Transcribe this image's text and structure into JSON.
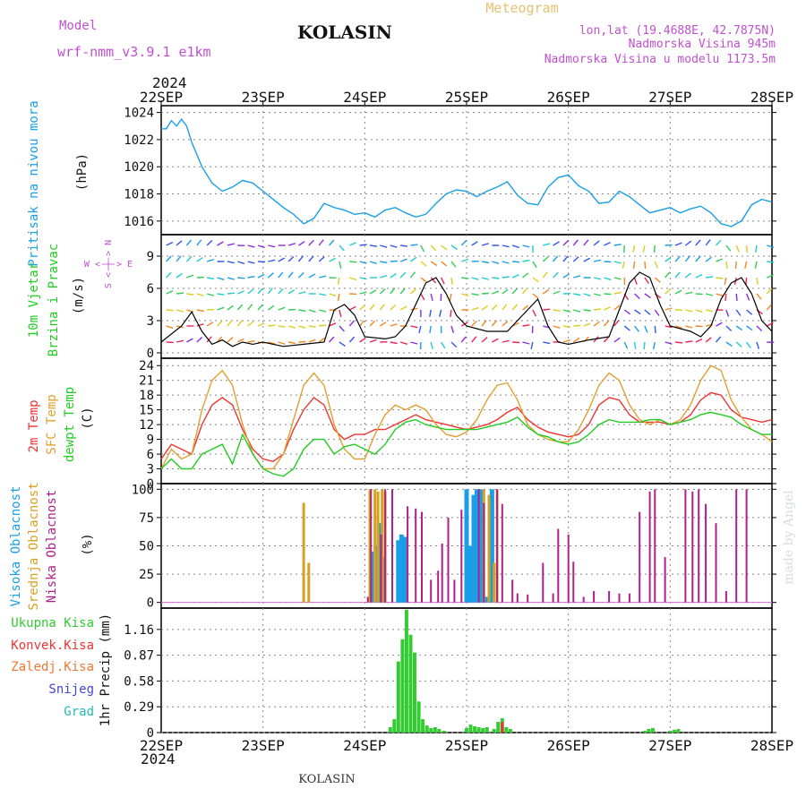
{
  "header": {
    "model_label": "Model",
    "model_name": "wrf-nmm_v3.9.1 e1km",
    "station": "KOLASIN",
    "product": "Meteogram",
    "lonlat": "lon,lat (19.4688E, 42.7875N)",
    "elevation": "Nadmorska Visina 945m",
    "model_elevation": "Nadmorska Visina u modelu 1173.5m",
    "credit": "made by Angel",
    "footer": "KOLASIN"
  },
  "time_axis": {
    "year": "2024",
    "labels": [
      "22SEP",
      "23SEP",
      "24SEP",
      "25SEP",
      "26SEP",
      "27SEP",
      "28SEP"
    ]
  },
  "panels": {
    "pressure": {
      "title": "Pritisak na nivou mora",
      "unit": "(hPa)"
    },
    "wind": {
      "title1": "10m Vjetar",
      "title2": "Brzina i Pravac",
      "unit": "(m/s)",
      "compass_we": "W <-|-> E",
      "compass_sn": "S <-|-> N"
    },
    "temp": {
      "t1": "2m Temp",
      "t2": "SFC Temp",
      "t3": "dewpt Temp",
      "unit": "(C)"
    },
    "cloud": {
      "t1": "Visoka Oblacnost",
      "t2": "Srednja Oblacnost",
      "t3": "Niska Oblacnost",
      "unit": "(%)"
    },
    "precip": {
      "l1": "Ukupna Kisa",
      "l2": "Konvek.Kisa",
      "l3": "Zaledj.Kisa",
      "l4": "Snijeg",
      "l5": "Grad",
      "unit": "1hr Precip (mm)"
    }
  },
  "colors": {
    "pressure": "#1a9fe6",
    "t2m": "#ee3333",
    "tsfc": "#e0a030",
    "dew": "#22cc22",
    "high": "#1a9fe6",
    "mid": "#d8a020",
    "low": "#b0208a",
    "total": "#33cc33",
    "conv": "#ee3333",
    "freeze": "#ee7733",
    "snow": "#4444dd",
    "grad": "#22bbbb",
    "title": "#c050d0"
  },
  "chart_data": [
    {
      "type": "line",
      "name": "pressure",
      "x_days": [
        0,
        0.05,
        0.1,
        0.15,
        0.2,
        0.25,
        0.3,
        0.4,
        0.5,
        0.6,
        0.7,
        0.8,
        0.9,
        1.0,
        1.1,
        1.2,
        1.3,
        1.4,
        1.5,
        1.6,
        1.7,
        1.8,
        1.9,
        2.0,
        2.1,
        2.2,
        2.3,
        2.4,
        2.5,
        2.6,
        2.7,
        2.8,
        2.9,
        3.0,
        3.1,
        3.2,
        3.3,
        3.4,
        3.5,
        3.6,
        3.7,
        3.8,
        3.9,
        4.0,
        4.1,
        4.2,
        4.3,
        4.4,
        4.5,
        4.6,
        4.7,
        4.8,
        4.9,
        5.0,
        5.1,
        5.2,
        5.3,
        5.4,
        5.5,
        5.6,
        5.7,
        5.8,
        5.9,
        6.0
      ],
      "y": [
        1022.8,
        1022.8,
        1023.4,
        1023.0,
        1023.5,
        1023.0,
        1021.8,
        1020.0,
        1018.8,
        1018.2,
        1018.5,
        1019.0,
        1018.8,
        1018.2,
        1017.6,
        1017.0,
        1016.5,
        1015.8,
        1016.2,
        1017.3,
        1017.0,
        1016.8,
        1016.5,
        1016.6,
        1016.3,
        1016.8,
        1017.0,
        1016.6,
        1016.3,
        1016.5,
        1017.3,
        1018.0,
        1018.3,
        1018.2,
        1017.8,
        1018.2,
        1018.5,
        1018.9,
        1017.9,
        1017.3,
        1017.2,
        1018.5,
        1019.2,
        1019.4,
        1018.6,
        1018.2,
        1017.3,
        1017.4,
        1018.2,
        1017.8,
        1017.2,
        1016.6,
        1016.8,
        1017.0,
        1016.6,
        1016.9,
        1017.1,
        1016.6,
        1015.8,
        1015.6,
        1016.0,
        1017.2,
        1017.6,
        1017.4
      ],
      "ylim": [
        1015,
        1024.5
      ],
      "yticks": [
        1016,
        1018,
        1020,
        1022,
        1024
      ]
    },
    {
      "type": "line",
      "name": "wind_speed",
      "x_days": [
        0,
        0.2,
        0.3,
        0.4,
        0.5,
        0.6,
        0.7,
        0.8,
        0.9,
        1.0,
        1.2,
        1.4,
        1.6,
        1.7,
        1.8,
        1.9,
        2.0,
        2.2,
        2.3,
        2.4,
        2.5,
        2.6,
        2.7,
        2.8,
        2.9,
        3.0,
        3.2,
        3.4,
        3.5,
        3.6,
        3.7,
        3.8,
        3.9,
        4.0,
        4.2,
        4.4,
        4.5,
        4.6,
        4.7,
        4.8,
        4.9,
        5.0,
        5.2,
        5.3,
        5.4,
        5.5,
        5.6,
        5.7,
        5.8,
        5.9,
        6.0
      ],
      "y": [
        1.0,
        2.5,
        3.8,
        2.0,
        0.8,
        1.2,
        0.6,
        1.0,
        0.8,
        1.0,
        0.6,
        0.8,
        1.0,
        4.0,
        4.5,
        3.5,
        1.5,
        1.3,
        1.5,
        2.5,
        4.5,
        6.5,
        7.0,
        5.5,
        3.5,
        2.5,
        2.0,
        2.0,
        3.0,
        4.0,
        5.0,
        2.5,
        1.0,
        0.8,
        1.2,
        1.5,
        4.0,
        6.5,
        7.5,
        7.0,
        4.5,
        2.5,
        2.0,
        1.5,
        2.5,
        5.0,
        6.5,
        7.0,
        5.5,
        3.0,
        2.0
      ],
      "ylim": [
        -0.5,
        11
      ],
      "yticks": [
        0,
        3,
        6,
        9
      ]
    },
    {
      "type": "line",
      "name": "temperature",
      "x_days": [
        0,
        0.1,
        0.2,
        0.3,
        0.4,
        0.5,
        0.6,
        0.7,
        0.8,
        0.9,
        1.0,
        1.1,
        1.2,
        1.3,
        1.4,
        1.5,
        1.6,
        1.7,
        1.8,
        1.9,
        2.0,
        2.1,
        2.2,
        2.3,
        2.4,
        2.5,
        2.6,
        2.7,
        2.8,
        2.9,
        3.0,
        3.1,
        3.2,
        3.3,
        3.4,
        3.5,
        3.6,
        3.7,
        3.8,
        3.9,
        4.0,
        4.1,
        4.2,
        4.3,
        4.4,
        4.5,
        4.6,
        4.7,
        4.8,
        4.9,
        5.0,
        5.1,
        5.2,
        5.3,
        5.4,
        5.5,
        5.6,
        5.7,
        5.8,
        5.9,
        6.0
      ],
      "series": [
        {
          "name": "2m Temp",
          "y": [
            5,
            8,
            7,
            6,
            12,
            16,
            17.5,
            16,
            11,
            7,
            5,
            4.5,
            6,
            11,
            15,
            17.5,
            16,
            11,
            9,
            10,
            10,
            11,
            11,
            12,
            13,
            14,
            13,
            12.5,
            12,
            11.5,
            11,
            11.5,
            12,
            13,
            14.5,
            15.5,
            13,
            11.5,
            10.5,
            10,
            9.5,
            10,
            12,
            16,
            17.5,
            17,
            14,
            12.5,
            12.5,
            12.5,
            12,
            12.5,
            14,
            17,
            18.5,
            18,
            15,
            13.5,
            13,
            12.5,
            13
          ]
        },
        {
          "name": "SFC Temp",
          "y": [
            3,
            7,
            5,
            6,
            15,
            21,
            23,
            20,
            12,
            6,
            3,
            3,
            6,
            13,
            20,
            22.5,
            20,
            12,
            7,
            5,
            5,
            10,
            14,
            16,
            15,
            16,
            15,
            12,
            10,
            9.5,
            10.5,
            13,
            17,
            20,
            20.5,
            17,
            12,
            10,
            9,
            8.5,
            8.5,
            11,
            15,
            20,
            22.5,
            21,
            16,
            13,
            12,
            13,
            12,
            13,
            16,
            21,
            24,
            23,
            17,
            13.5,
            11,
            10,
            8.5
          ]
        },
        {
          "name": "dewpt Temp",
          "y": [
            3,
            5,
            3,
            3,
            6,
            7,
            8,
            4,
            10,
            6,
            3,
            2,
            1.5,
            3,
            7,
            9,
            9,
            6,
            7.5,
            8,
            7,
            6,
            8,
            11,
            12.5,
            13,
            12,
            11.5,
            11,
            11,
            11,
            11,
            11.5,
            12,
            12.5,
            13.5,
            11.5,
            10,
            9.5,
            8.5,
            8,
            8.5,
            10,
            12,
            13,
            12.5,
            12.5,
            12.5,
            13,
            13,
            12,
            12.5,
            13,
            14,
            14.5,
            14,
            13.5,
            12,
            11,
            10,
            10
          ]
        }
      ],
      "ylim": [
        0,
        25.5
      ],
      "yticks": [
        0,
        3,
        6,
        9,
        12,
        15,
        18,
        21,
        24
      ]
    },
    {
      "type": "bar",
      "name": "cloud_cover",
      "series": [
        {
          "name": "Visoka Oblacnost",
          "x_days": [
            2.08,
            2.11,
            2.14,
            2.18,
            2.33,
            2.36,
            2.39,
            3.0,
            3.04,
            3.07,
            3.1,
            3.14,
            3.2,
            3.23,
            3.25
          ],
          "values": [
            45,
            50,
            70,
            40,
            55,
            60,
            58,
            100,
            50,
            95,
            100,
            100,
            5,
            25,
            100
          ]
        },
        {
          "name": "Srednja Oblacnost",
          "x_days": [
            1.4,
            1.45,
            2.05,
            2.1,
            2.13,
            2.17,
            2.2,
            3.17,
            3.22,
            3.27,
            3.3
          ],
          "values": [
            88,
            35,
            100,
            100,
            98,
            100,
            98,
            100,
            95,
            35,
            100
          ]
        },
        {
          "name": "Niska Oblacnost",
          "x_days": [
            2.03,
            2.06,
            2.16,
            2.2,
            2.27,
            2.42,
            2.5,
            2.56,
            2.65,
            2.72,
            2.76,
            2.82,
            2.88,
            2.95,
            3.12,
            3.17,
            3.3,
            3.35,
            3.45,
            3.5,
            3.6,
            3.75,
            3.85,
            3.9,
            4.0,
            4.05,
            4.15,
            4.25,
            4.4,
            4.5,
            4.6,
            4.7,
            4.8,
            4.85,
            4.95,
            5.15,
            5.22,
            5.28,
            5.35,
            5.45,
            5.55,
            5.65,
            5.75
          ],
          "values": [
            5,
            100,
            60,
            100,
            100,
            85,
            83,
            80,
            20,
            28,
            52,
            75,
            20,
            82,
            100,
            88,
            100,
            87,
            20,
            8,
            7,
            35,
            8,
            65,
            60,
            36,
            5,
            10,
            10,
            8,
            8,
            80,
            98,
            100,
            40,
            100,
            98,
            100,
            87,
            70,
            10,
            100,
            100
          ]
        }
      ],
      "ylim": [
        -5,
        105
      ],
      "yticks": [
        0,
        25,
        50,
        75,
        100
      ]
    },
    {
      "type": "bar",
      "name": "precip_1hr",
      "series": [
        {
          "name": "Ukupna Kisa",
          "x_days": [
            2.25,
            2.29,
            2.33,
            2.37,
            2.41,
            2.45,
            2.49,
            2.53,
            2.57,
            2.61,
            2.65,
            2.69,
            2.73,
            2.78,
            3.0,
            3.04,
            3.08,
            3.12,
            3.16,
            3.2,
            3.27,
            3.31,
            3.35,
            3.39,
            3.43,
            4.75,
            4.79,
            4.83,
            5.0,
            5.04,
            5.08
          ],
          "values": [
            0.06,
            0.15,
            0.8,
            1.05,
            1.38,
            1.1,
            0.9,
            0.35,
            0.15,
            0.08,
            0.05,
            0.06,
            0.04,
            0.02,
            0.05,
            0.09,
            0.07,
            0.06,
            0.05,
            0.06,
            0.04,
            0.12,
            0.16,
            0.06,
            0.04,
            0.02,
            0.04,
            0.05,
            0.02,
            0.03,
            0.04
          ]
        },
        {
          "name": "Konvek.Kisa",
          "x_days": [
            3.35
          ],
          "values": [
            0.12
          ]
        }
      ],
      "ylim": [
        0,
        1.4
      ],
      "yticks": [
        0,
        0.29,
        0.58,
        0.87,
        1.16
      ]
    }
  ]
}
